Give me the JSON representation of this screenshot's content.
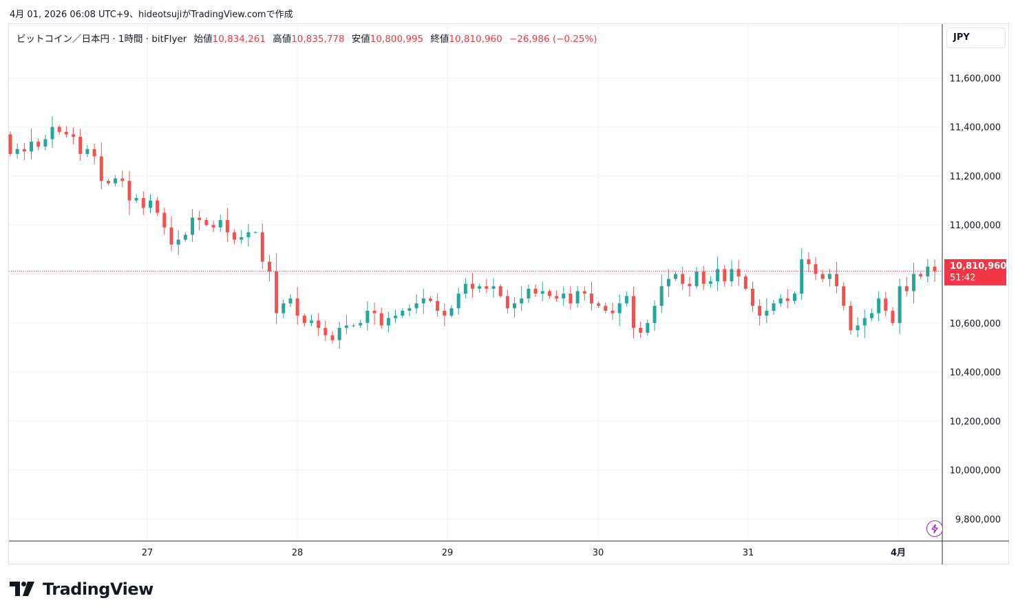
{
  "header": {
    "timestamp_line": "4月 01, 2026 06:08 UTC+9、hideotsujiがTradingView.comで作成"
  },
  "legend": {
    "symbol": "ビットコイン／日本円 · 1時間 · bitFlyer",
    "open_label": "始値",
    "open_value": "10,834,261",
    "high_label": "高値",
    "high_value": "10,835,778",
    "low_label": "安値",
    "low_value": "10,800,995",
    "close_label": "終値",
    "close_value": "10,810,960",
    "change": "−26,986 (−0.25%)"
  },
  "currency_button": {
    "label": "JPY"
  },
  "last_price_tag": {
    "price": "10,810,960",
    "countdown": "51:42"
  },
  "brand": {
    "name": "TradingView"
  },
  "colors": {
    "up": "#26a69a",
    "down": "#ef5350",
    "grid": "#f0f3fa",
    "accent_red": "#f23645",
    "alert_purple": "#9c27b0"
  },
  "icons": {
    "alert": "lightning-icon",
    "logo": "tradingview-logo-icon"
  },
  "chart_data": {
    "type": "candlestick",
    "title": "ビットコイン／日本円 · 1時間 · bitFlyer",
    "interval": "1時間",
    "currency": "JPY",
    "y_axis": {
      "ticks": [
        9800000,
        10000000,
        10200000,
        10400000,
        10600000,
        10800000,
        11000000,
        11200000,
        11400000,
        11600000
      ],
      "tick_labels": [
        "9,800,000",
        "10,000,000",
        "10,200,000",
        "10,400,000",
        "10,600,000",
        "",
        "11,000,000",
        "11,200,000",
        "11,400,000",
        "11,600,000"
      ],
      "ylim": [
        9710000,
        11820000
      ]
    },
    "x_axis": {
      "tick_labels": [
        "27",
        "28",
        "29",
        "30",
        "31",
        "4月"
      ],
      "bold_last": true
    },
    "grid": true,
    "last_price": 10810960,
    "ohlc_start": 11370000,
    "closes": [
      11290000,
      11310000,
      11300000,
      11340000,
      11320000,
      11350000,
      11400000,
      11380000,
      11370000,
      11360000,
      11290000,
      11310000,
      11280000,
      11180000,
      11170000,
      11190000,
      11180000,
      11100000,
      11110000,
      11070000,
      11100000,
      11050000,
      10990000,
      10920000,
      10940000,
      10960000,
      11030000,
      11020000,
      11000000,
      10990000,
      11020000,
      10970000,
      10940000,
      10950000,
      10970000,
      10970000,
      10850000,
      10810000,
      10640000,
      10680000,
      10700000,
      10630000,
      10600000,
      10610000,
      10580000,
      10550000,
      10530000,
      10580000,
      10590000,
      10590000,
      10600000,
      10650000,
      10640000,
      10590000,
      10620000,
      10630000,
      10650000,
      10660000,
      10680000,
      10700000,
      10690000,
      10650000,
      10630000,
      10660000,
      10720000,
      10760000,
      10740000,
      10750000,
      10740000,
      10750000,
      10710000,
      10660000,
      10680000,
      10700000,
      10740000,
      10720000,
      10730000,
      10710000,
      10700000,
      10720000,
      10680000,
      10730000,
      10720000,
      10680000,
      10670000,
      10650000,
      10640000,
      10680000,
      10710000,
      10580000,
      10560000,
      10600000,
      10670000,
      10750000,
      10780000,
      10800000,
      10760000,
      10750000,
      10810000,
      10760000,
      10770000,
      10820000,
      10770000,
      10820000,
      10790000,
      10740000,
      10670000,
      10630000,
      10650000,
      10680000,
      10700000,
      10690000,
      10720000,
      10860000,
      10840000,
      10800000,
      10780000,
      10800000,
      10750000,
      10670000,
      10570000,
      10590000,
      10620000,
      10640000,
      10700000,
      10650000,
      10600000,
      10750000,
      10730000,
      10800000,
      10790000,
      10830000,
      10810960
    ]
  }
}
